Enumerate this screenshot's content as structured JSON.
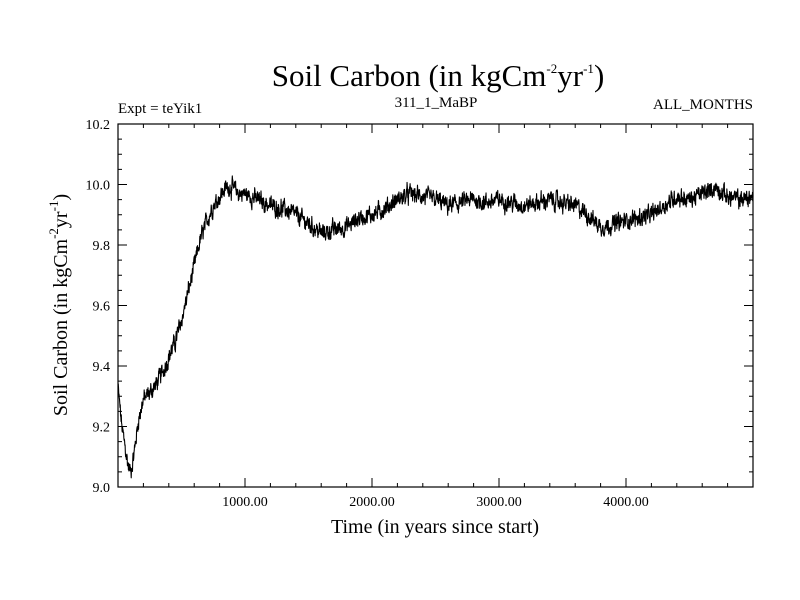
{
  "chart_data": {
    "type": "line",
    "title": {
      "base": "Soil Carbon (in kgCm",
      "sup1": "-2",
      "mid": "yr",
      "sup2": "-1",
      "end": ")"
    },
    "subtitle_left": "Expt = teYik1",
    "subtitle_center": "311_1_MaBP",
    "subtitle_right": "ALL_MONTHS",
    "xlabel": "Time (in years since start)",
    "ylabel": {
      "base": "Soil Carbon (in kgCm",
      "sup1": "-2",
      "mid": "yr",
      "sup2": "-1",
      "end": ")"
    },
    "xlim": [
      0,
      5000
    ],
    "ylim": [
      9.0,
      10.2
    ],
    "xticks": [
      {
        "value": 1000,
        "label": "1000.00"
      },
      {
        "value": 2000,
        "label": "2000.00"
      },
      {
        "value": 3000,
        "label": "3000.00"
      },
      {
        "value": 4000,
        "label": "4000.00"
      }
    ],
    "yticks": [
      {
        "value": 9.0,
        "label": "9.0"
      },
      {
        "value": 9.2,
        "label": "9.2"
      },
      {
        "value": 9.4,
        "label": "9.4"
      },
      {
        "value": 9.6,
        "label": "9.6"
      },
      {
        "value": 9.8,
        "label": "9.8"
      },
      {
        "value": 10.0,
        "label": "10.0"
      },
      {
        "value": 10.2,
        "label": "10.2"
      }
    ],
    "series": [
      {
        "name": "Soil Carbon",
        "color": "#000000",
        "noise": 0.022,
        "x": [
          0,
          30,
          60,
          80,
          100,
          130,
          160,
          200,
          250,
          300,
          350,
          400,
          450,
          500,
          550,
          600,
          650,
          700,
          750,
          800,
          850,
          900,
          950,
          1000,
          1100,
          1200,
          1300,
          1400,
          1500,
          1600,
          1700,
          1800,
          1900,
          2000,
          2100,
          2200,
          2300,
          2400,
          2500,
          2600,
          2700,
          2800,
          2900,
          3000,
          3100,
          3200,
          3300,
          3400,
          3500,
          3600,
          3700,
          3800,
          3900,
          4000,
          4100,
          4200,
          4300,
          4400,
          4500,
          4600,
          4700,
          4800,
          4900,
          5000
        ],
        "y": [
          9.33,
          9.2,
          9.12,
          9.07,
          9.05,
          9.12,
          9.22,
          9.29,
          9.31,
          9.34,
          9.38,
          9.43,
          9.48,
          9.55,
          9.64,
          9.73,
          9.82,
          9.88,
          9.93,
          9.96,
          9.99,
          9.99,
          9.97,
          9.97,
          9.95,
          9.93,
          9.92,
          9.9,
          9.87,
          9.84,
          9.85,
          9.86,
          9.89,
          9.9,
          9.92,
          9.95,
          9.97,
          9.96,
          9.95,
          9.93,
          9.94,
          9.95,
          9.94,
          9.95,
          9.94,
          9.93,
          9.94,
          9.95,
          9.94,
          9.93,
          9.9,
          9.86,
          9.87,
          9.88,
          9.89,
          9.9,
          9.93,
          9.96,
          9.95,
          9.97,
          9.99,
          9.96,
          9.95,
          9.96
        ]
      }
    ]
  }
}
